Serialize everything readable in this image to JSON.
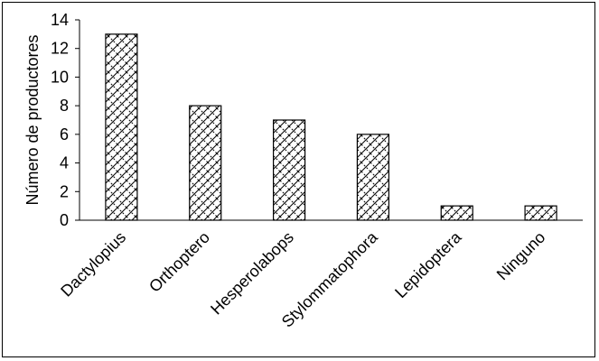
{
  "chart_data": {
    "type": "bar",
    "title": "",
    "xlabel": "",
    "ylabel": "Número de productores",
    "categories": [
      "Dactylopius",
      "Orthoptero",
      "Hesperolabops",
      "Stylommatophora",
      "Lepidoptera",
      "Ninguno"
    ],
    "values": [
      13,
      8,
      7,
      6,
      1,
      1
    ],
    "ylim": [
      0,
      14
    ],
    "yticks": [
      "0",
      "2",
      "4",
      "6",
      "8",
      "10",
      "12",
      "14"
    ],
    "grid": false,
    "legend": "none",
    "bar_fill": "crosshatch-diagonal",
    "colors": {
      "bar_stroke": "#000000",
      "pattern": "#000000",
      "background": "#ffffff"
    }
  }
}
